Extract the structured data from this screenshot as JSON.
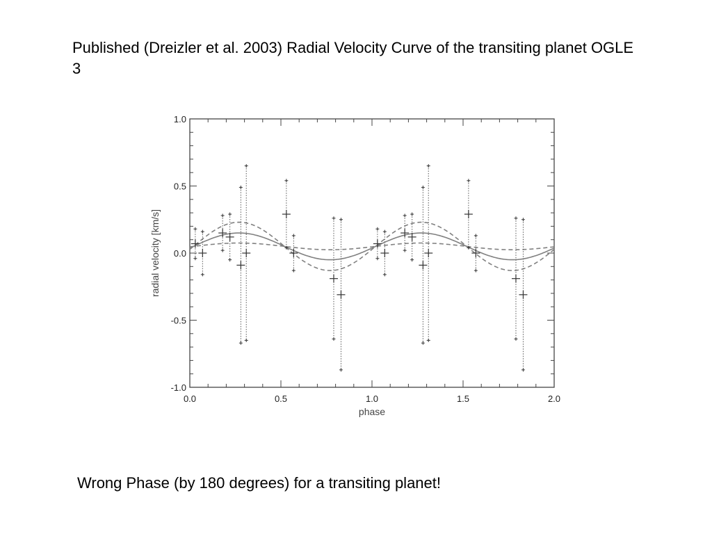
{
  "slide": {
    "title": "Published (Dreizler et al. 2003) Radial Velocity Curve of the transiting planet OGLE 3",
    "footer": "Wrong Phase (by 180 degrees) for a transiting planet!"
  },
  "chart_data": {
    "type": "scatter",
    "xlabel": "phase",
    "ylabel": "radial velocity [km/s]",
    "xlim": [
      0.0,
      2.0
    ],
    "ylim": [
      -1.0,
      1.0
    ],
    "xticks": [
      "0.0",
      "0.5",
      "1.0",
      "1.5",
      "2.0"
    ],
    "yticks": [
      "-1.0",
      "-0.5",
      "0.0",
      "0.5",
      "1.0"
    ],
    "grid": false,
    "points": [
      {
        "x": 0.03,
        "y": 0.07,
        "yerr": 0.11
      },
      {
        "x": 0.07,
        "y": 0.0,
        "yerr": 0.16
      },
      {
        "x": 0.18,
        "y": 0.15,
        "yerr": 0.13
      },
      {
        "x": 0.22,
        "y": 0.12,
        "yerr": 0.17
      },
      {
        "x": 0.28,
        "y": -0.09,
        "yerr": 0.58
      },
      {
        "x": 0.31,
        "y": 0.0,
        "yerr": 0.65
      },
      {
        "x": 0.53,
        "y": 0.29,
        "yerr": 0.25
      },
      {
        "x": 0.57,
        "y": 0.0,
        "yerr": 0.13
      },
      {
        "x": 0.79,
        "y": -0.19,
        "yerr": 0.45
      },
      {
        "x": 0.83,
        "y": -0.31,
        "yerr": 0.56
      }
    ],
    "series": [
      {
        "style": "solid",
        "offset": 0.05,
        "amplitude": 0.1,
        "phase_of_max": 0.27
      },
      {
        "style": "dashed",
        "offset": 0.05,
        "amplitude": 0.18,
        "phase_of_max": 0.27
      },
      {
        "style": "dashed",
        "offset": 0.05,
        "amplitude": 0.025,
        "phase_of_max": 0.27
      }
    ],
    "colors": {
      "curve": "#808080",
      "errorbar": "#555555",
      "marker": "#333333",
      "frame": "#444444"
    }
  }
}
